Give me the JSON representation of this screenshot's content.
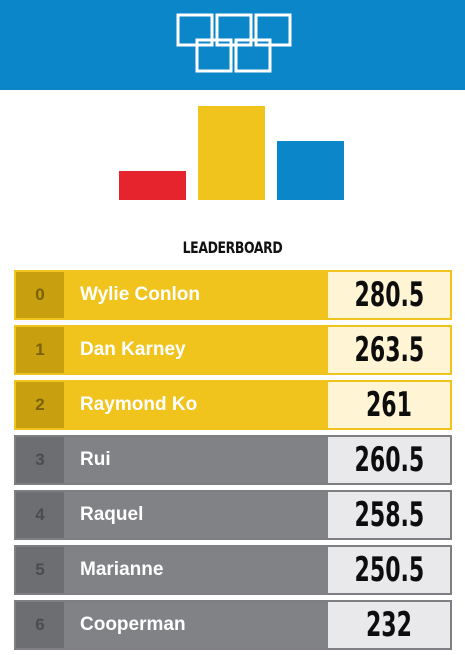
{
  "header": {
    "logo_icon": "olympic-rings-squares-icon",
    "background_color": "#0b86c8"
  },
  "podium": {
    "bars": [
      {
        "place": "third",
        "color": "#e5242d"
      },
      {
        "place": "first",
        "color": "#f0c41c"
      },
      {
        "place": "second",
        "color": "#0b86c8"
      }
    ]
  },
  "leaderboard": {
    "title": "LEADERBOARD",
    "rows": [
      {
        "rank": "0",
        "name": "Wylie Conlon",
        "score": "280.5",
        "tier": "gold"
      },
      {
        "rank": "1",
        "name": "Dan Karney",
        "score": "263.5",
        "tier": "gold"
      },
      {
        "rank": "2",
        "name": "Raymond Ko",
        "score": "261",
        "tier": "gold"
      },
      {
        "rank": "3",
        "name": "Rui",
        "score": "260.5",
        "tier": "gray"
      },
      {
        "rank": "4",
        "name": "Raquel",
        "score": "258.5",
        "tier": "gray"
      },
      {
        "rank": "5",
        "name": "Marianne",
        "score": "250.5",
        "tier": "gray"
      },
      {
        "rank": "6",
        "name": "Cooperman",
        "score": "232",
        "tier": "gray"
      }
    ]
  }
}
